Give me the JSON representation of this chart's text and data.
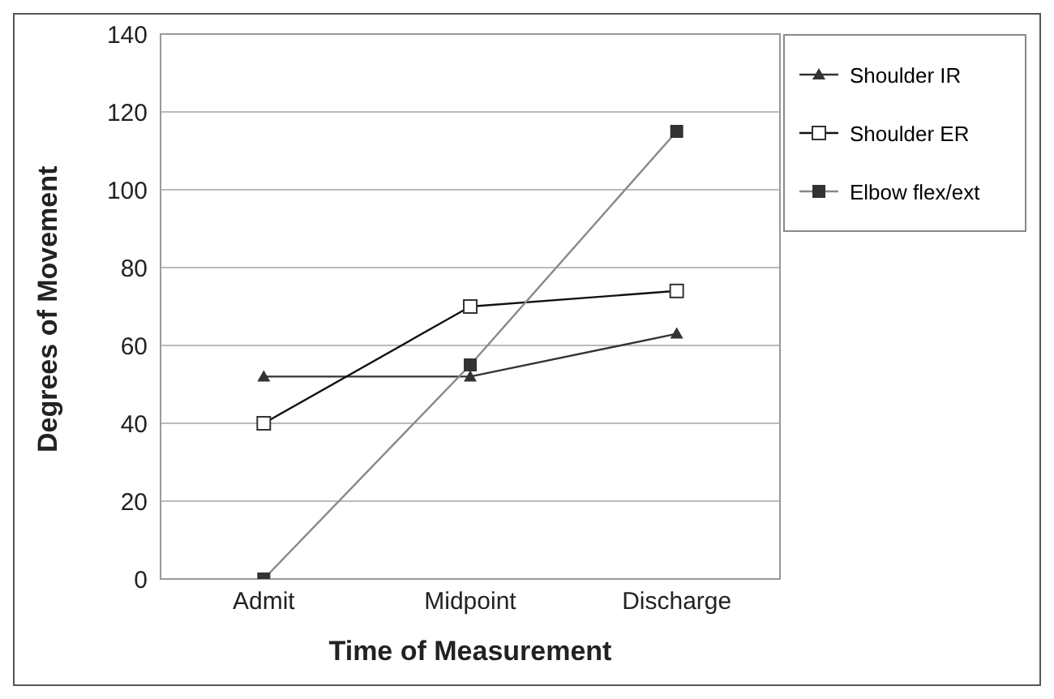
{
  "chart_data": {
    "type": "line",
    "xlabel": "Time of Measurement",
    "ylabel": "Degrees of Movement",
    "categories": [
      "Admit",
      "Midpoint",
      "Discharge"
    ],
    "series": [
      {
        "name": "Shoulder IR",
        "color": "#333333",
        "marker": "triangle",
        "values": [
          52,
          52,
          63
        ]
      },
      {
        "name": "Shoulder ER",
        "color": "#111111",
        "marker": "square_open",
        "values": [
          40,
          70,
          74
        ]
      },
      {
        "name": "Elbow flex/ext",
        "color": "#888888",
        "marker": "square",
        "values": [
          0,
          55,
          115
        ]
      }
    ],
    "ylim": [
      0,
      140
    ],
    "yticks": [
      0,
      20,
      40,
      60,
      80,
      100,
      120,
      140
    ],
    "grid": "y",
    "legend": "top right"
  }
}
